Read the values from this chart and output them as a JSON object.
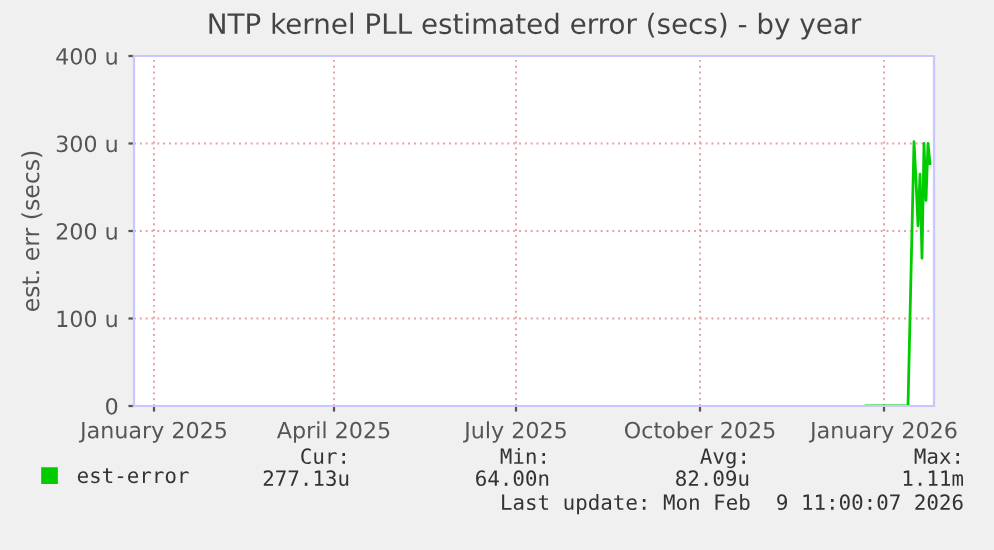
{
  "chart_data": {
    "type": "line",
    "title": "NTP kernel PLL estimated error (secs) - by year",
    "ylabel": "est. err (secs)",
    "x": [
      "2026-01-06",
      "2026-01-27",
      "2026-01-30",
      "2026-01-31",
      "2026-02-01",
      "2026-02-02",
      "2026-02-03",
      "2026-02-04",
      "2026-02-05",
      "2026-02-06",
      "2026-02-07"
    ],
    "series": [
      {
        "name": "est-error",
        "color": "#00cc00",
        "values": [
          0,
          0,
          302,
          258,
          206,
          265,
          169,
          300,
          235,
          300,
          277
        ]
      }
    ],
    "xlim": [
      "2025-01-05",
      "2026-02-09"
    ],
    "xticks": [
      {
        "value": "2025-01-15",
        "label": "January 2025"
      },
      {
        "value": "2025-04-15",
        "label": "April 2025"
      },
      {
        "value": "2025-07-15",
        "label": "July 2025"
      },
      {
        "value": "2025-10-15",
        "label": "October 2025"
      },
      {
        "value": "2026-01-15",
        "label": "January 2026"
      }
    ],
    "ylim": [
      0,
      400
    ],
    "yticks": [
      0,
      {
        "value": 100,
        "label": "100 u"
      },
      {
        "value": 200,
        "label": "200 u"
      },
      {
        "value": 300,
        "label": "300 u"
      },
      {
        "value": 400,
        "label": "400 u"
      }
    ],
    "grid": true,
    "legend": "bottom",
    "annotations": [
      "Cur:",
      "277.13u",
      "Min:",
      "64.00n",
      "Avg:",
      "82.09u",
      "Max:",
      "1.11m",
      "Last update: Mon Feb  9 11:00:07 2026"
    ]
  }
}
